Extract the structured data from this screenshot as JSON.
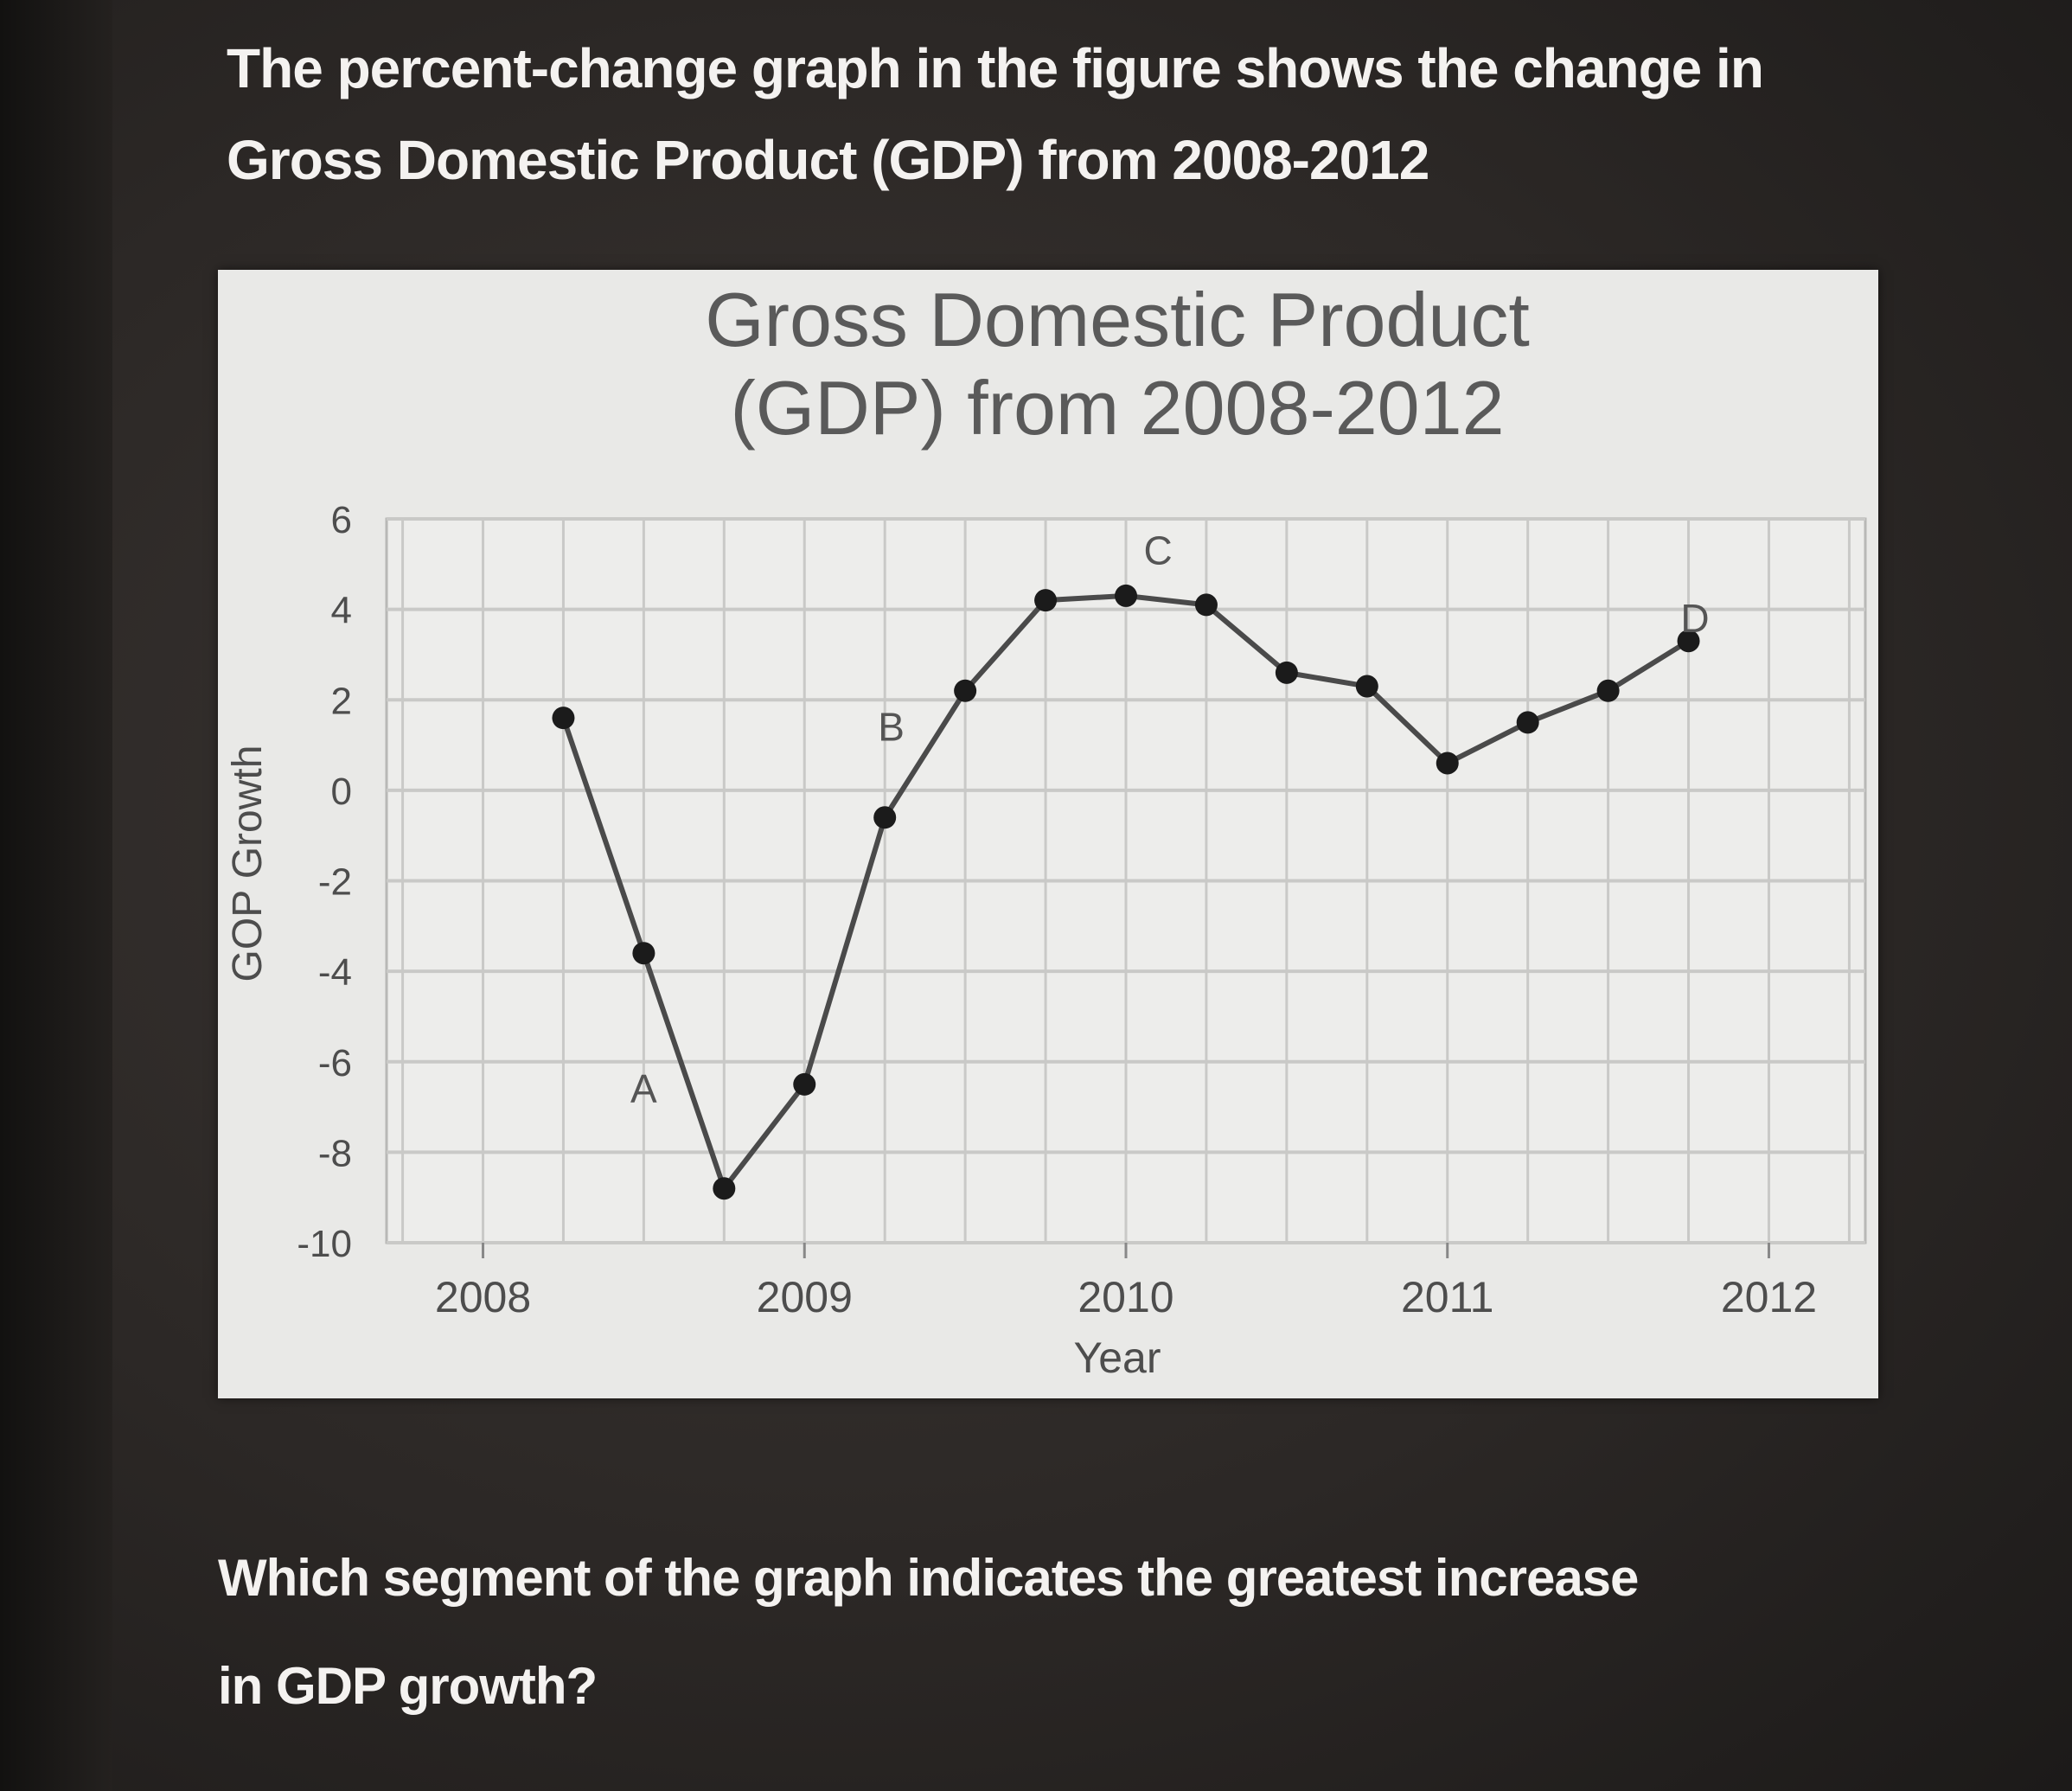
{
  "intro": {
    "line1": "The percent-change graph in the figure shows the change in",
    "line2": "Gross Domestic Product (GDP) from 2008-2012"
  },
  "question": {
    "line1": "Which segment of the graph indicates the greatest increase",
    "line2": "in GDP growth?"
  },
  "chart_data": {
    "type": "line",
    "title": [
      "Gross Domestic Product",
      "(GDP) from 2008-2012"
    ],
    "xlabel": "Year",
    "ylabel": "GOP Growth",
    "xlim": [
      2007.7,
      2012.3
    ],
    "ylim": [
      -10,
      6
    ],
    "xticks": [
      2008,
      2009,
      2010,
      2011,
      2012
    ],
    "yticks": [
      6,
      4,
      2,
      0,
      -2,
      -4,
      -6,
      -8,
      -10
    ],
    "grid": true,
    "series": [
      {
        "x": [
          2008.25,
          2008.5,
          2008.75,
          2009.0,
          2009.25,
          2009.5,
          2009.75,
          2010.0,
          2010.25,
          2010.5,
          2010.75,
          2011.0,
          2011.25,
          2011.5,
          2011.75
        ],
        "y": [
          1.6,
          -3.6,
          -8.8,
          -6.5,
          -0.6,
          2.2,
          4.2,
          4.3,
          4.1,
          2.6,
          2.3,
          0.6,
          1.5,
          2.2,
          3.3
        ]
      }
    ],
    "annotations": [
      {
        "text": "A",
        "x": 2008.5,
        "y": -6.9
      },
      {
        "text": "B",
        "x": 2009.27,
        "y": 1.1
      },
      {
        "text": "C",
        "x": 2010.1,
        "y": 5.0
      },
      {
        "text": "D",
        "x": 2011.77,
        "y": 3.5
      }
    ],
    "colors": {
      "line": "#4a4a4a",
      "marker": "#1b1b1b",
      "grid": "#c9c9c7",
      "text": "#4d4d4d"
    }
  }
}
